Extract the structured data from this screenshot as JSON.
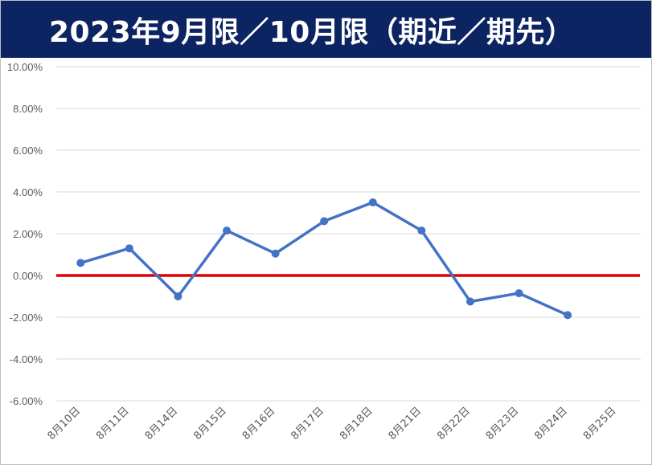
{
  "title": "2023年9月限／10月限（期近／期先）",
  "chart_data": {
    "type": "line",
    "title": "2023年9月限／10月限（期近／期先）",
    "xlabel": "",
    "ylabel": "",
    "categories": [
      "8月10日",
      "8月11日",
      "8月14日",
      "8月15日",
      "8月16日",
      "8月17日",
      "8月18日",
      "8月21日",
      "8月22日",
      "8月23日",
      "8月24日",
      "8月25日"
    ],
    "series": [
      {
        "name": "",
        "values": [
          0.6,
          1.3,
          -1.0,
          2.15,
          1.05,
          2.6,
          3.5,
          2.15,
          -1.25,
          -0.85,
          -1.9,
          null
        ]
      }
    ],
    "reference_line": {
      "value": 0.0
    },
    "ylim": [
      -6,
      10
    ],
    "yticks": [
      "10.00%",
      "8.00%",
      "6.00%",
      "4.00%",
      "2.00%",
      "0.00%",
      "-2.00%",
      "-4.00%",
      "-6.00%"
    ],
    "grid": true,
    "legend": "none",
    "colors": {
      "series": "#4472c4",
      "reference": "#e00000",
      "grid": "#d9d9d9",
      "title_bg": "#0c2461"
    }
  }
}
